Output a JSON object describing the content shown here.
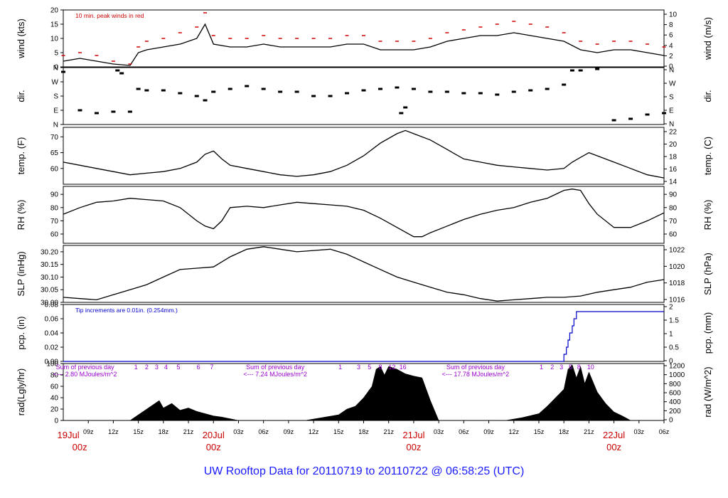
{
  "chart_data": {
    "type": "line",
    "title": "UW Rooftop Data for 20110719  to  20110722 @ 06:58:25  (UTC)",
    "time_axis": {
      "unit": "hours since 2011-07-19 06:00 UTC",
      "range": [
        0,
        72
      ],
      "tick_labels": [
        "09z",
        "12z",
        "15z",
        "18z",
        "21z",
        "20Jul",
        "03z",
        "06z",
        "09z",
        "12z",
        "15z",
        "18z",
        "21z",
        "21Jul",
        "03z",
        "06z",
        "09z",
        "12z",
        "15z",
        "18z",
        "21z",
        "22Jul",
        "03z",
        "06z"
      ],
      "day_labels": [
        {
          "date": "19Jul",
          "time": "00z",
          "hour": -6
        },
        {
          "date": "20Jul",
          "time": "00z",
          "hour": 18
        },
        {
          "date": "21Jul",
          "time": "00z",
          "hour": 42
        },
        {
          "date": "22Jul",
          "time": "00z",
          "hour": 66
        }
      ]
    },
    "panels": [
      {
        "id": "wind",
        "ylabel_left": "wind (kts)",
        "ylabel_right": "wind (m/s)",
        "ylim": [
          0,
          20
        ],
        "left_ticks": [
          "0",
          "5",
          "10",
          "15",
          "20"
        ],
        "right_ticks": [
          "0",
          "2",
          "4",
          "6",
          "8",
          "10"
        ],
        "right_tick_values": [
          0,
          2,
          4,
          6,
          8,
          10
        ],
        "note": "10 min. peak winds in red",
        "note_color": "#cc0000",
        "series": [
          {
            "name": "wind speed",
            "color": "#000000",
            "x": [
              0,
              2,
              4,
              6,
              8,
              9,
              10,
              12,
              14,
              16,
              17,
              18,
              20,
              22,
              24,
              26,
              28,
              30,
              32,
              34,
              36,
              38,
              40,
              42,
              44,
              46,
              48,
              50,
              52,
              54,
              56,
              58,
              60,
              62,
              64,
              66,
              68,
              70,
              72
            ],
            "y": [
              2,
              3,
              2,
              1,
              0.5,
              5,
              6,
              7,
              8,
              10,
              15,
              8,
              7,
              7,
              8,
              7,
              7,
              7,
              7,
              8,
              8,
              6,
              6,
              6,
              7,
              9,
              10,
              11,
              11,
              12,
              11,
              10,
              9,
              6,
              5,
              6,
              6,
              5,
              4
            ]
          },
          {
            "name": "10 min. peak winds",
            "color": "#cc0000",
            "style": "dashes",
            "x": [
              0,
              2,
              4,
              6,
              8,
              9,
              10,
              12,
              14,
              16,
              17,
              18,
              20,
              22,
              24,
              26,
              28,
              30,
              32,
              34,
              36,
              38,
              40,
              42,
              44,
              46,
              48,
              50,
              52,
              54,
              56,
              58,
              60,
              62,
              64,
              66,
              68,
              70,
              72
            ],
            "y": [
              4,
              5,
              4,
              2,
              1,
              7,
              9,
              10,
              12,
              14,
              19,
              11,
              10,
              10,
              11,
              10,
              10,
              10,
              10,
              11,
              11,
              9,
              9,
              9,
              10,
              12,
              13,
              14,
              15,
              16,
              15,
              14,
              12,
              9,
              8,
              9,
              9,
              8,
              7
            ]
          }
        ]
      },
      {
        "id": "dir",
        "ylabel_left": "dir.",
        "ylabel_right": "dir.",
        "ylim": [
          0,
          4
        ],
        "left_ticks": [
          "N",
          "E",
          "S",
          "W",
          "N"
        ],
        "right_ticks": [
          "N",
          "E",
          "S",
          "W",
          "N"
        ],
        "right_tick_values": [
          0,
          1,
          2,
          3,
          4
        ],
        "series": [
          {
            "name": "wind direction",
            "color": "#000000",
            "style": "dots",
            "x": [
              0,
              2,
              4,
              6,
              6.5,
              7,
              8,
              9,
              10,
              12,
              14,
              16,
              17,
              18,
              20,
              22,
              24,
              26,
              28,
              30,
              32,
              34,
              36,
              38,
              40,
              40.5,
              41,
              42,
              44,
              46,
              48,
              50,
              52,
              54,
              56,
              58,
              60,
              61,
              62,
              64,
              66,
              68,
              70,
              72
            ],
            "y": [
              3.7,
              1,
              0.8,
              0.9,
              3.8,
              3.6,
              0.9,
              2.5,
              2.4,
              2.4,
              2.2,
              2,
              1.7,
              2.3,
              2.5,
              2.7,
              2.5,
              2.3,
              2.3,
              2,
              2,
              2.2,
              2.4,
              2.5,
              2.6,
              0.8,
              1.2,
              2.5,
              2.3,
              2.3,
              2.2,
              2.2,
              2.1,
              2.3,
              2.4,
              2.5,
              2.8,
              3.8,
              3.8,
              3.9,
              0.3,
              0.4,
              0.7,
              0.8
            ]
          }
        ]
      },
      {
        "id": "temp",
        "ylabel_left": "temp. (F)",
        "ylabel_right": "temp. (C)",
        "ylim": [
          55,
          73
        ],
        "left_ticks": [
          "60",
          "65",
          "70"
        ],
        "left_tick_values": [
          60,
          65,
          70
        ],
        "right_ticks": [
          "14",
          "16",
          "18",
          "20",
          "22"
        ],
        "right_tick_values": [
          14,
          16,
          18,
          20,
          22
        ],
        "series": [
          {
            "name": "temperature",
            "color": "#000000",
            "x": [
              0,
              2,
              4,
              6,
              8,
              10,
              12,
              14,
              16,
              17,
              18,
              19,
              20,
              22,
              24,
              26,
              28,
              30,
              32,
              34,
              36,
              38,
              40,
              41,
              42,
              44,
              46,
              48,
              50,
              52,
              54,
              56,
              58,
              60,
              61,
              62,
              63,
              64,
              66,
              68,
              70,
              72
            ],
            "y": [
              62,
              61,
              60,
              59,
              58,
              58.5,
              59,
              60,
              62,
              64.5,
              65.5,
              63,
              61,
              60,
              59,
              58,
              57.5,
              58,
              59,
              61,
              64,
              68,
              71,
              72,
              71,
              69,
              66,
              63,
              62,
              61,
              60.5,
              60,
              59.5,
              60,
              62,
              63.5,
              65,
              64,
              62,
              60,
              58,
              57
            ]
          }
        ]
      },
      {
        "id": "rh",
        "ylabel_left": "RH (%)",
        "ylabel_right": "RH (%)",
        "ylim": [
          53,
          96
        ],
        "left_ticks": [
          "60",
          "70",
          "80",
          "90"
        ],
        "left_tick_values": [
          60,
          70,
          80,
          90
        ],
        "right_ticks": [
          "60",
          "70",
          "80",
          "90"
        ],
        "right_tick_values": [
          60,
          70,
          80,
          90
        ],
        "series": [
          {
            "name": "relative humidity",
            "color": "#000000",
            "x": [
              0,
              2,
              4,
              6,
              8,
              10,
              12,
              14,
              16,
              17,
              18,
              19,
              20,
              22,
              24,
              26,
              28,
              30,
              32,
              34,
              36,
              38,
              40,
              42,
              43,
              44,
              46,
              48,
              50,
              52,
              54,
              56,
              58,
              60,
              61,
              62,
              63,
              64,
              66,
              68,
              70,
              72
            ],
            "y": [
              75,
              80,
              84,
              85,
              87,
              86,
              85,
              80,
              70,
              66,
              64,
              70,
              80,
              81,
              80,
              82,
              84,
              83,
              82,
              81,
              78,
              72,
              65,
              58,
              58,
              61,
              66,
              71,
              75,
              78,
              80,
              84,
              87,
              93,
              94,
              93,
              83,
              75,
              65,
              65,
              70,
              76
            ]
          }
        ]
      },
      {
        "id": "slp",
        "ylabel_left": "SLP (inHg)",
        "ylabel_right": "SLP (hPa)",
        "ylim": [
          30.0,
          30.225
        ],
        "left_ticks": [
          "30.00",
          "30.05",
          "30.10",
          "30.15",
          "30.20"
        ],
        "left_tick_values": [
          30.0,
          30.05,
          30.1,
          30.15,
          30.2
        ],
        "right_ticks": [
          "1016",
          "1018",
          "1020",
          "1022"
        ],
        "right_tick_values": [
          1016,
          1018,
          1020,
          1022
        ],
        "series": [
          {
            "name": "sea level pressure",
            "color": "#000000",
            "x": [
              0,
              2,
              4,
              6,
              8,
              10,
              12,
              14,
              16,
              18,
              20,
              22,
              24,
              26,
              28,
              30,
              32,
              34,
              36,
              38,
              40,
              42,
              44,
              46,
              48,
              50,
              52,
              54,
              56,
              58,
              60,
              62,
              64,
              66,
              68,
              70,
              72
            ],
            "y": [
              30.02,
              30.015,
              30.01,
              30.03,
              30.05,
              30.07,
              30.1,
              30.13,
              30.135,
              30.14,
              30.18,
              30.21,
              30.22,
              30.21,
              30.2,
              30.205,
              30.21,
              30.19,
              30.16,
              30.13,
              30.1,
              30.08,
              30.06,
              30.04,
              30.03,
              30.015,
              30.005,
              30.01,
              30.015,
              30.02,
              30.02,
              30.025,
              30.04,
              30.05,
              30.06,
              30.08,
              30.09
            ]
          }
        ]
      },
      {
        "id": "pcp",
        "ylabel_left": "pcp. (in)",
        "ylabel_right": "pcp. (mm)",
        "ylim": [
          0,
          0.08
        ],
        "left_ticks": [
          "0.00",
          "0.02",
          "0.04",
          "0.06",
          "0.08"
        ],
        "left_tick_values": [
          0,
          0.02,
          0.04,
          0.06,
          0.08
        ],
        "right_ticks": [
          "0",
          "0.5",
          "1",
          "1.5",
          "2"
        ],
        "right_tick_values": [
          0,
          0.5,
          1,
          1.5,
          2
        ],
        "note": "Tip increments are 0.01in. (0.254mm.)",
        "note_color": "#0000cc",
        "series": [
          {
            "name": "accumulated precipitation",
            "color": "#0000cc",
            "style": "step",
            "x": [
              0,
              59.8,
              60,
              60.3,
              60.5,
              60.7,
              61,
              61.2,
              61.5,
              72
            ],
            "y": [
              0,
              0,
              0.01,
              0.02,
              0.03,
              0.04,
              0.05,
              0.06,
              0.07,
              0.07
            ]
          }
        ]
      },
      {
        "id": "rad",
        "ylabel_left": "rad(Lgly/hr)",
        "ylabel_right": "rad (W/m^2)",
        "ylim": [
          0,
          100
        ],
        "left_ticks": [
          "0",
          "20",
          "40",
          "60",
          "80",
          "100"
        ],
        "left_tick_values": [
          0,
          20,
          40,
          60,
          80,
          100
        ],
        "right_ticks": [
          "0",
          "200",
          "400",
          "600",
          "800",
          "1000",
          "1200"
        ],
        "right_tick_values": [
          0,
          200,
          400,
          600,
          800,
          1000,
          1200
        ],
        "series": [
          {
            "name": "solar radiation",
            "color": "#000000",
            "style": "area",
            "x": [
              5,
              8,
              9,
              10,
              11,
              11.5,
              12,
              13,
              14,
              15,
              16,
              17,
              18,
              19,
              21,
              29,
              31,
              33,
              34,
              35,
              36,
              37,
              37.5,
              38,
              38.5,
              39,
              40,
              41,
              42,
              43,
              44,
              45,
              53,
              55,
              57,
              58,
              59,
              60,
              60.5,
              61,
              61.5,
              62,
              62.5,
              63,
              64,
              65,
              66,
              67,
              68
            ],
            "y": [
              0,
              0,
              10,
              20,
              30,
              35,
              22,
              30,
              18,
              22,
              16,
              12,
              8,
              6,
              0,
              0,
              5,
              10,
              20,
              25,
              40,
              60,
              90,
              95,
              80,
              95,
              90,
              82,
              78,
              75,
              35,
              0,
              0,
              5,
              12,
              25,
              40,
              55,
              90,
              98,
              75,
              95,
              65,
              85,
              50,
              30,
              15,
              8,
              0
            ]
          }
        ],
        "annotations": [
          {
            "line1": "Sum of previous day",
            "line2": "<--- 2.80 MJoules/m^2",
            "hour": -0.8
          },
          {
            "line1": "Sum of previous day",
            "line2": "<--- 7.24 MJoules/m^2",
            "hour": 22
          },
          {
            "line1": "Sum of previous day",
            "line2": "<--- 17.78 MJoules/m^2",
            "hour": 46
          }
        ],
        "annotation_color": "#9900cc",
        "number_markers": [
          {
            "label": "1",
            "hour": 8.7
          },
          {
            "label": "2",
            "hour": 10
          },
          {
            "label": "3",
            "hour": 11.2
          },
          {
            "label": "4",
            "hour": 12.3
          },
          {
            "label": "5",
            "hour": 13.8
          },
          {
            "label": "6",
            "hour": 16.2
          },
          {
            "label": "7",
            "hour": 17.8
          },
          {
            "label": "1",
            "hour": 33.2
          },
          {
            "label": "3",
            "hour": 35.4
          },
          {
            "label": "5",
            "hour": 36.7
          },
          {
            "label": "8",
            "hour": 38
          },
          {
            "label": "12",
            "hour": 39.4
          },
          {
            "label": "16",
            "hour": 40.7
          },
          {
            "label": "1",
            "hour": 57.3
          },
          {
            "label": "2",
            "hour": 58.6
          },
          {
            "label": "3",
            "hour": 59.7
          },
          {
            "label": "5",
            "hour": 60.8
          },
          {
            "label": "8",
            "hour": 61.8
          },
          {
            "label": "10",
            "hour": 63.2
          }
        ]
      }
    ]
  }
}
